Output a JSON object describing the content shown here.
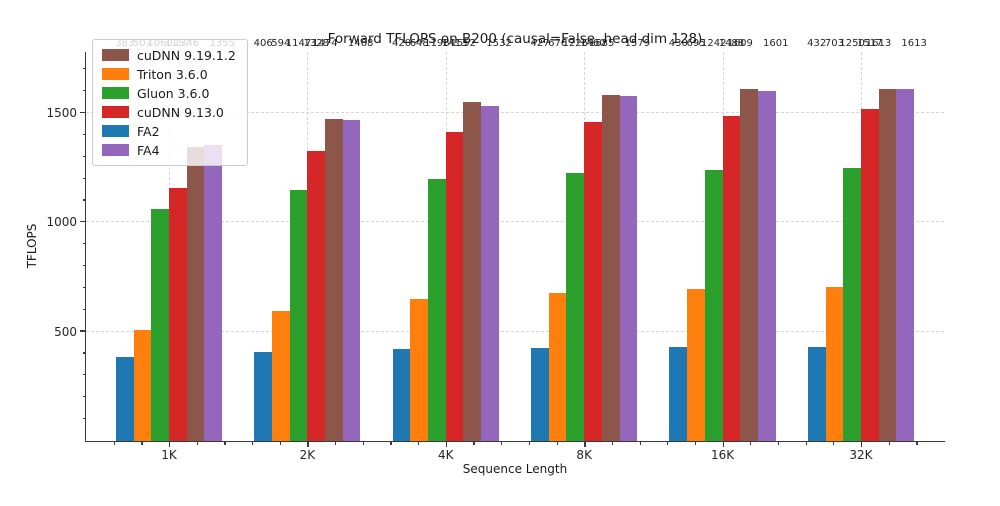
{
  "chart_data": {
    "type": "bar",
    "title": "Forward TFLOPS on B200 (causal=False, head dim 128)",
    "xlabel": "Sequence Length",
    "ylabel": "TFLOPS",
    "categories": [
      "1K",
      "2K",
      "4K",
      "8K",
      "16K",
      "32K"
    ],
    "series": [
      {
        "name": "FA2",
        "color": "#1f77b4",
        "values": [
          383,
          406,
          420,
          427,
          430,
          432
        ]
      },
      {
        "name": "Triton 3.6.0",
        "color": "#ff7f0e",
        "values": [
          507,
          594,
          648,
          676,
          695,
          703
        ]
      },
      {
        "name": "Gluon 3.6.0",
        "color": "#2ca02c",
        "values": [
          1060,
          1147,
          1198,
          1226,
          1242,
          1250
        ]
      },
      {
        "name": "cuDNN 9.13.0",
        "color": "#d62728",
        "values": [
          1157,
          1328,
          1413,
          1460,
          1488,
          1517
        ]
      },
      {
        "name": "cuDNN 9.19.1.2",
        "color": "#8c564b",
        "values": [
          1346,
          1474,
          1552,
          1585,
          1609,
          1613
        ]
      },
      {
        "name": "FA4",
        "color": "#9467bd",
        "values": [
          1355,
          1468,
          1532,
          1579,
          1601,
          1613
        ]
      }
    ],
    "legend": [
      {
        "label": "cuDNN 9.19.1.2",
        "color": "#8c564b"
      },
      {
        "label": "Triton 3.6.0",
        "color": "#ff7f0e"
      },
      {
        "label": "Gluon 3.6.0",
        "color": "#2ca02c"
      },
      {
        "label": "cuDNN 9.13.0",
        "color": "#d62728"
      },
      {
        "label": "FA2",
        "color": "#1f77b4"
      },
      {
        "label": "FA4",
        "color": "#9467bd"
      }
    ],
    "legend_position": "upper-left",
    "yticks": [
      500,
      1000,
      1500
    ],
    "y_minor_step": 100,
    "ylim": [
      0,
      1780
    ],
    "grid": "dashed",
    "grid_color": "#d6d6d6",
    "axis_color": "#3a3a3a"
  }
}
